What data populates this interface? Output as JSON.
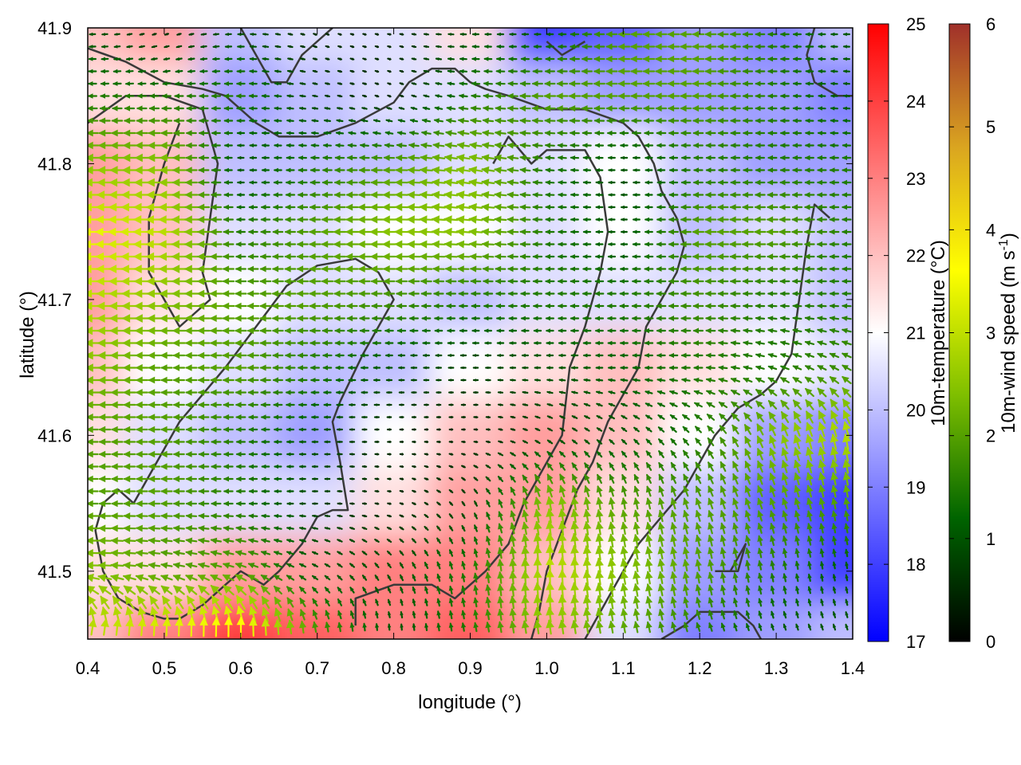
{
  "chart_data": {
    "type": "heatmap",
    "title": "",
    "xlabel": "longitude (°)",
    "ylabel": "latitude (°)",
    "xlim": [
      0.4,
      1.4
    ],
    "ylim": [
      41.45,
      41.9
    ],
    "x_ticks": [
      "0.4",
      "0.5",
      "0.6",
      "0.7",
      "0.8",
      "0.9",
      "1.0",
      "1.1",
      "1.2",
      "1.3",
      "1.4"
    ],
    "x_tick_values": [
      0.4,
      0.5,
      0.6,
      0.7,
      0.8,
      0.9,
      1.0,
      1.1,
      1.2,
      1.3,
      1.4
    ],
    "y_ticks": [
      "41.5",
      "41.6",
      "41.7",
      "41.8",
      "41.9"
    ],
    "y_tick_values": [
      41.5,
      41.6,
      41.7,
      41.8,
      41.9
    ],
    "grid": false,
    "temperature_colorbar": {
      "label": "10m-temperature (°C)",
      "range": [
        17,
        25
      ],
      "ticks": [
        "17",
        "18",
        "19",
        "20",
        "21",
        "22",
        "23",
        "24",
        "25"
      ],
      "tick_values": [
        17,
        18,
        19,
        20,
        21,
        22,
        23,
        24,
        25
      ],
      "colors": [
        "#0000ff",
        "#ffffff",
        "#ff0000"
      ]
    },
    "wind_colorbar": {
      "label": "10m-wind speed (m s",
      "label_sup": "-1",
      "label_end": ")",
      "range": [
        0,
        6
      ],
      "ticks": [
        "0",
        "1",
        "2",
        "3",
        "4",
        "5",
        "6"
      ],
      "tick_values": [
        0,
        1,
        2,
        3,
        4,
        5,
        6
      ],
      "colors": [
        "#000000",
        "#006400",
        "#7fbf00",
        "#ffff00",
        "#daa520",
        "#a0302a"
      ]
    },
    "temperature_field": {
      "x": [
        0.4,
        0.5,
        0.6,
        0.7,
        0.8,
        0.9,
        1.0,
        1.1,
        1.2,
        1.3,
        1.4
      ],
      "y": [
        41.9,
        41.85,
        41.8,
        41.75,
        41.7,
        41.65,
        41.6,
        41.55,
        41.5,
        41.45
      ],
      "values": [
        [
          22.0,
          22.5,
          20.0,
          20.5,
          20.5,
          21.5,
          18.0,
          18.5,
          19.5,
          19.0,
          20.0
        ],
        [
          21.5,
          21.5,
          19.5,
          20.0,
          20.5,
          20.5,
          20.0,
          19.5,
          19.5,
          19.5,
          19.0
        ],
        [
          22.5,
          22.0,
          20.0,
          20.0,
          20.0,
          20.5,
          20.5,
          21.0,
          20.0,
          19.5,
          19.5
        ],
        [
          22.5,
          22.0,
          20.5,
          20.5,
          21.0,
          21.0,
          20.5,
          21.0,
          20.0,
          20.5,
          20.0
        ],
        [
          22.5,
          21.5,
          21.0,
          20.5,
          20.5,
          20.0,
          20.5,
          20.5,
          20.5,
          20.5,
          20.0
        ],
        [
          22.0,
          21.0,
          20.5,
          20.0,
          20.0,
          21.0,
          21.5,
          22.0,
          21.5,
          21.0,
          20.5
        ],
        [
          21.5,
          20.5,
          20.0,
          19.5,
          21.0,
          22.0,
          22.5,
          22.0,
          21.0,
          19.5,
          19.0
        ],
        [
          21.0,
          20.5,
          20.5,
          20.5,
          21.5,
          22.5,
          22.5,
          21.5,
          20.0,
          18.5,
          18.0
        ],
        [
          21.5,
          21.5,
          22.5,
          22.5,
          23.0,
          23.0,
          22.0,
          21.0,
          19.5,
          19.0,
          18.0
        ],
        [
          22.0,
          23.0,
          24.0,
          23.5,
          23.0,
          23.5,
          22.5,
          20.5,
          19.0,
          19.5,
          20.0
        ]
      ]
    },
    "wind_field": {
      "x": [
        0.4,
        0.5,
        0.6,
        0.7,
        0.8,
        0.9,
        1.0,
        1.1,
        1.2,
        1.3,
        1.4
      ],
      "y": [
        41.9,
        41.85,
        41.8,
        41.75,
        41.7,
        41.65,
        41.6,
        41.55,
        41.5,
        41.45
      ],
      "speed": [
        [
          1.0,
          0.5,
          1.0,
          0.5,
          0.5,
          1.0,
          1.0,
          2.0,
          2.0,
          1.5,
          1.0
        ],
        [
          1.5,
          1.5,
          1.5,
          0.8,
          0.5,
          1.5,
          2.0,
          2.0,
          2.0,
          1.5,
          1.0
        ],
        [
          2.5,
          2.5,
          1.0,
          1.5,
          2.0,
          2.5,
          1.5,
          1.0,
          1.5,
          1.5,
          1.5
        ],
        [
          3.5,
          3.0,
          1.5,
          2.0,
          2.5,
          2.5,
          1.5,
          1.0,
          2.0,
          2.0,
          1.5
        ],
        [
          3.0,
          2.5,
          2.0,
          2.0,
          1.8,
          1.5,
          1.5,
          1.5,
          1.8,
          1.5,
          1.5
        ],
        [
          2.5,
          2.0,
          2.0,
          1.5,
          1.0,
          0.8,
          1.0,
          1.2,
          1.5,
          1.5,
          1.8
        ],
        [
          2.0,
          2.0,
          1.5,
          1.0,
          0.5,
          0.5,
          0.8,
          1.0,
          1.5,
          2.5,
          3.0
        ],
        [
          2.0,
          2.0,
          1.5,
          0.8,
          0.5,
          0.8,
          2.5,
          2.0,
          2.0,
          2.0,
          2.0
        ],
        [
          2.5,
          2.0,
          2.0,
          1.0,
          1.0,
          1.5,
          3.0,
          2.5,
          2.0,
          1.5,
          1.0
        ],
        [
          3.0,
          3.5,
          4.0,
          2.0,
          1.0,
          1.5,
          2.5,
          2.0,
          1.5,
          1.0,
          1.0
        ]
      ],
      "direction_deg": [
        [
          180,
          200,
          180,
          160,
          170,
          180,
          180,
          180,
          180,
          180,
          180
        ],
        [
          180,
          180,
          180,
          170,
          160,
          175,
          180,
          180,
          180,
          180,
          175
        ],
        [
          180,
          180,
          180,
          180,
          180,
          170,
          175,
          180,
          180,
          180,
          180
        ],
        [
          180,
          180,
          180,
          180,
          180,
          175,
          180,
          180,
          180,
          180,
          180
        ],
        [
          180,
          180,
          180,
          180,
          180,
          180,
          180,
          180,
          180,
          180,
          180
        ],
        [
          180,
          180,
          180,
          180,
          180,
          180,
          180,
          180,
          180,
          160,
          150
        ],
        [
          180,
          180,
          180,
          180,
          180,
          180,
          150,
          140,
          130,
          110,
          100
        ],
        [
          180,
          180,
          180,
          180,
          170,
          120,
          100,
          100,
          110,
          110,
          100
        ],
        [
          180,
          170,
          160,
          150,
          120,
          100,
          90,
          100,
          100,
          100,
          100
        ],
        [
          60,
          70,
          75,
          90,
          90,
          100,
          100,
          100,
          110,
          110,
          110
        ]
      ]
    },
    "contours": [
      [
        [
          0.4,
          41.885
        ],
        [
          0.45,
          41.875
        ],
        [
          0.5,
          41.86
        ],
        [
          0.55,
          41.855
        ],
        [
          0.58,
          41.85
        ],
        [
          0.62,
          41.83
        ],
        [
          0.65,
          41.82
        ],
        [
          0.7,
          41.82
        ],
        [
          0.75,
          41.83
        ],
        [
          0.8,
          41.845
        ],
        [
          0.82,
          41.86
        ],
        [
          0.85,
          41.87
        ],
        [
          0.88,
          41.87
        ],
        [
          0.9,
          41.86
        ],
        [
          0.92,
          41.855
        ],
        [
          0.95,
          41.85
        ],
        [
          1.0,
          41.84
        ],
        [
          1.05,
          41.84
        ],
        [
          1.1,
          41.83
        ],
        [
          1.12,
          41.82
        ],
        [
          1.14,
          41.8
        ],
        [
          1.15,
          41.78
        ],
        [
          1.17,
          41.76
        ],
        [
          1.18,
          41.74
        ],
        [
          1.17,
          41.72
        ],
        [
          1.15,
          41.7
        ],
        [
          1.13,
          41.68
        ],
        [
          1.12,
          41.65
        ],
        [
          1.1,
          41.63
        ],
        [
          1.08,
          41.61
        ],
        [
          1.06,
          41.58
        ],
        [
          1.04,
          41.56
        ],
        [
          1.02,
          41.53
        ],
        [
          1.0,
          41.5
        ],
        [
          0.99,
          41.47
        ],
        [
          0.98,
          41.45
        ]
      ],
      [
        [
          0.52,
          41.465
        ],
        [
          0.55,
          41.475
        ],
        [
          0.58,
          41.49
        ],
        [
          0.6,
          41.5
        ],
        [
          0.63,
          41.49
        ],
        [
          0.65,
          41.5
        ],
        [
          0.68,
          41.52
        ],
        [
          0.7,
          41.54
        ],
        [
          0.72,
          41.545
        ],
        [
          0.74,
          41.545
        ],
        [
          0.73,
          41.58
        ],
        [
          0.72,
          41.61
        ],
        [
          0.73,
          41.625
        ],
        [
          0.76,
          41.66
        ],
        [
          0.78,
          41.68
        ],
        [
          0.8,
          41.7
        ],
        [
          0.78,
          41.72
        ],
        [
          0.75,
          41.73
        ],
        [
          0.7,
          41.725
        ],
        [
          0.66,
          41.71
        ],
        [
          0.62,
          41.68
        ],
        [
          0.58,
          41.65
        ],
        [
          0.55,
          41.63
        ],
        [
          0.52,
          41.61
        ],
        [
          0.5,
          41.59
        ],
        [
          0.48,
          41.57
        ],
        [
          0.46,
          41.55
        ],
        [
          0.44,
          41.56
        ],
        [
          0.42,
          41.55
        ],
        [
          0.41,
          41.53
        ],
        [
          0.42,
          41.5
        ],
        [
          0.44,
          41.48
        ],
        [
          0.47,
          41.47
        ],
        [
          0.5,
          41.465
        ],
        [
          0.52,
          41.465
        ]
      ],
      [
        [
          0.6,
          41.9
        ],
        [
          0.62,
          41.88
        ],
        [
          0.64,
          41.86
        ],
        [
          0.66,
          41.86
        ],
        [
          0.68,
          41.88
        ],
        [
          0.7,
          41.89
        ],
        [
          0.72,
          41.9
        ]
      ],
      [
        [
          0.4,
          41.83
        ],
        [
          0.45,
          41.85
        ],
        [
          0.5,
          41.85
        ],
        [
          0.55,
          41.84
        ],
        [
          0.57,
          41.8
        ],
        [
          0.56,
          41.76
        ],
        [
          0.55,
          41.72
        ],
        [
          0.56,
          41.7
        ],
        [
          0.52,
          41.68
        ],
        [
          0.5,
          41.7
        ],
        [
          0.48,
          41.72
        ],
        [
          0.48,
          41.76
        ],
        [
          0.5,
          41.8
        ],
        [
          0.52,
          41.83
        ]
      ],
      [
        [
          0.75,
          41.46
        ],
        [
          0.75,
          41.48
        ],
        [
          0.8,
          41.49
        ],
        [
          0.85,
          41.49
        ],
        [
          0.88,
          41.48
        ],
        [
          0.9,
          41.49
        ],
        [
          0.92,
          41.5
        ],
        [
          0.95,
          41.52
        ],
        [
          0.97,
          41.55
        ],
        [
          1.0,
          41.58
        ],
        [
          1.02,
          41.6
        ],
        [
          1.03,
          41.65
        ],
        [
          1.05,
          41.68
        ],
        [
          1.07,
          41.72
        ],
        [
          1.08,
          41.75
        ],
        [
          1.07,
          41.79
        ],
        [
          1.05,
          41.81
        ],
        [
          1.0,
          41.81
        ],
        [
          0.98,
          41.8
        ],
        [
          0.95,
          41.82
        ],
        [
          0.93,
          41.8
        ]
      ],
      [
        [
          1.05,
          41.45
        ],
        [
          1.08,
          41.48
        ],
        [
          1.1,
          41.5
        ],
        [
          1.12,
          41.52
        ],
        [
          1.15,
          41.54
        ],
        [
          1.18,
          41.56
        ],
        [
          1.2,
          41.58
        ],
        [
          1.22,
          41.6
        ],
        [
          1.25,
          41.62
        ],
        [
          1.28,
          41.63
        ],
        [
          1.3,
          41.64
        ],
        [
          1.32,
          41.66
        ],
        [
          1.33,
          41.7
        ],
        [
          1.34,
          41.74
        ],
        [
          1.35,
          41.77
        ],
        [
          1.37,
          41.76
        ]
      ],
      [
        [
          1.22,
          41.5
        ],
        [
          1.25,
          41.5
        ],
        [
          1.26,
          41.52
        ],
        [
          1.24,
          41.5
        ],
        [
          1.22,
          41.5
        ]
      ],
      [
        [
          1.15,
          41.45
        ],
        [
          1.18,
          41.46
        ],
        [
          1.2,
          41.47
        ],
        [
          1.25,
          41.47
        ],
        [
          1.27,
          41.46
        ],
        [
          1.28,
          41.45
        ]
      ],
      [
        [
          1.35,
          41.9
        ],
        [
          1.34,
          41.88
        ],
        [
          1.35,
          41.86
        ],
        [
          1.38,
          41.85
        ],
        [
          1.4,
          41.85
        ]
      ],
      [
        [
          1.0,
          41.89
        ],
        [
          1.02,
          41.88
        ],
        [
          1.05,
          41.89
        ]
      ]
    ]
  }
}
